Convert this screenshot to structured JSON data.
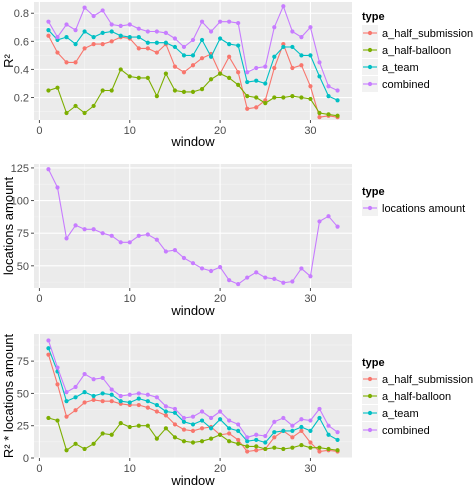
{
  "chart_data": [
    {
      "type": "line",
      "xlabel": "window",
      "ylabel": "R²",
      "legend_title": "type",
      "legend_position": "right",
      "x_ticks": [
        "0",
        "10",
        "20",
        "30"
      ],
      "y_ticks": [
        "0.2",
        "0.4",
        "0.6",
        "0.8"
      ],
      "xlim": [
        -0.6,
        34.6
      ],
      "ylim": [
        0.04,
        0.88
      ],
      "x": [
        1,
        2,
        3,
        4,
        5,
        6,
        7,
        8,
        9,
        10,
        11,
        12,
        13,
        14,
        15,
        16,
        17,
        18,
        19,
        20,
        21,
        22,
        23,
        24,
        25,
        26,
        27,
        28,
        29,
        30,
        31,
        32,
        33
      ],
      "series": [
        {
          "name": "a_half_submission",
          "color": "#F8766D",
          "values": [
            0.64,
            0.52,
            0.45,
            0.45,
            0.55,
            0.58,
            0.58,
            0.6,
            0.63,
            0.62,
            0.55,
            0.55,
            0.52,
            0.58,
            0.42,
            0.38,
            0.43,
            0.48,
            0.51,
            0.37,
            0.49,
            0.38,
            0.12,
            0.13,
            0.18,
            0.41,
            0.58,
            0.41,
            0.43,
            0.28,
            0.06,
            0.07,
            0.06
          ]
        },
        {
          "name": "a_half-balloon",
          "color": "#7CAE00",
          "values": [
            0.25,
            0.27,
            0.09,
            0.14,
            0.09,
            0.14,
            0.25,
            0.25,
            0.4,
            0.35,
            0.34,
            0.34,
            0.21,
            0.37,
            0.25,
            0.24,
            0.24,
            0.26,
            0.33,
            0.37,
            0.34,
            0.29,
            0.21,
            0.2,
            0.16,
            0.2,
            0.2,
            0.21,
            0.2,
            0.19,
            0.09,
            0.08,
            0.07
          ]
        },
        {
          "name": "a_team",
          "color": "#00BFC4",
          "values": [
            0.68,
            0.61,
            0.63,
            0.58,
            0.67,
            0.63,
            0.66,
            0.67,
            0.64,
            0.63,
            0.63,
            0.59,
            0.59,
            0.59,
            0.56,
            0.5,
            0.5,
            0.61,
            0.49,
            0.62,
            0.58,
            0.57,
            0.31,
            0.32,
            0.3,
            0.49,
            0.56,
            0.56,
            0.5,
            0.5,
            0.35,
            0.21,
            0.18
          ]
        },
        {
          "name": "combined",
          "color": "#C77CFF",
          "values": [
            0.74,
            0.63,
            0.72,
            0.68,
            0.84,
            0.78,
            0.82,
            0.72,
            0.71,
            0.72,
            0.69,
            0.67,
            0.67,
            0.66,
            0.62,
            0.56,
            0.61,
            0.74,
            0.67,
            0.74,
            0.74,
            0.73,
            0.38,
            0.41,
            0.42,
            0.7,
            0.85,
            0.67,
            0.63,
            0.7,
            0.45,
            0.28,
            0.25
          ]
        }
      ]
    },
    {
      "type": "line",
      "xlabel": "window",
      "ylabel": "locations amount",
      "legend_title": "type",
      "legend_position": "right",
      "x_ticks": [
        "0",
        "10",
        "20",
        "30"
      ],
      "y_ticks": [
        "50",
        "75",
        "100",
        "125"
      ],
      "xlim": [
        -0.6,
        34.6
      ],
      "ylim": [
        33,
        128
      ],
      "x": [
        1,
        2,
        3,
        4,
        5,
        6,
        7,
        8,
        9,
        10,
        11,
        12,
        13,
        14,
        15,
        16,
        17,
        18,
        19,
        20,
        21,
        22,
        23,
        24,
        25,
        26,
        27,
        28,
        29,
        30,
        31,
        32,
        33
      ],
      "series": [
        {
          "name": "locations amount",
          "color": "#C77CFF",
          "values": [
            124,
            110,
            71,
            81,
            78,
            78,
            75,
            73,
            68,
            68,
            73,
            74,
            70,
            61,
            62,
            56,
            52,
            48,
            46,
            49,
            39,
            36,
            41,
            45,
            41,
            40,
            37,
            38,
            48,
            42,
            84,
            88,
            80
          ]
        }
      ]
    },
    {
      "type": "line",
      "xlabel": "window",
      "ylabel": "R² * locations amount",
      "legend_title": "type",
      "legend_position": "right",
      "x_ticks": [
        "0",
        "10",
        "20",
        "30"
      ],
      "y_ticks": [
        "0",
        "25",
        "50",
        "75"
      ],
      "xlim": [
        -0.6,
        34.6
      ],
      "ylim": [
        0,
        96
      ],
      "x": [
        1,
        2,
        3,
        4,
        5,
        6,
        7,
        8,
        9,
        10,
        11,
        12,
        13,
        14,
        15,
        16,
        17,
        18,
        19,
        20,
        21,
        22,
        23,
        24,
        25,
        26,
        27,
        28,
        29,
        30,
        31,
        32,
        33
      ],
      "series": [
        {
          "name": "a_half_submission",
          "color": "#F8766D",
          "values": [
            80,
            57,
            32,
            37,
            43,
            45,
            44,
            44,
            42,
            41,
            41,
            39,
            36,
            33,
            26,
            22,
            21,
            23,
            24,
            18,
            19,
            14,
            5,
            6,
            7,
            16,
            21,
            16,
            21,
            12,
            5,
            6,
            5
          ]
        },
        {
          "name": "a_half-balloon",
          "color": "#7CAE00",
          "values": [
            31,
            29,
            6,
            11,
            7,
            11,
            19,
            18,
            27,
            24,
            25,
            25,
            15,
            23,
            16,
            13,
            12,
            13,
            15,
            18,
            13,
            11,
            9,
            9,
            7,
            8,
            7,
            8,
            10,
            8,
            8,
            7,
            6
          ]
        },
        {
          "name": "a_team",
          "color": "#00BFC4",
          "values": [
            85,
            67,
            44,
            47,
            51,
            48,
            50,
            49,
            44,
            43,
            46,
            44,
            41,
            36,
            35,
            28,
            26,
            29,
            23,
            30,
            23,
            21,
            13,
            14,
            12,
            20,
            21,
            21,
            24,
            21,
            31,
            18,
            14
          ]
        },
        {
          "name": "combined",
          "color": "#C77CFF",
          "values": [
            91,
            70,
            51,
            55,
            65,
            61,
            62,
            53,
            48,
            49,
            50,
            49,
            47,
            40,
            38,
            31,
            32,
            36,
            31,
            36,
            29,
            26,
            16,
            18,
            17,
            28,
            31,
            25,
            30,
            29,
            38,
            25,
            20
          ]
        }
      ]
    }
  ]
}
